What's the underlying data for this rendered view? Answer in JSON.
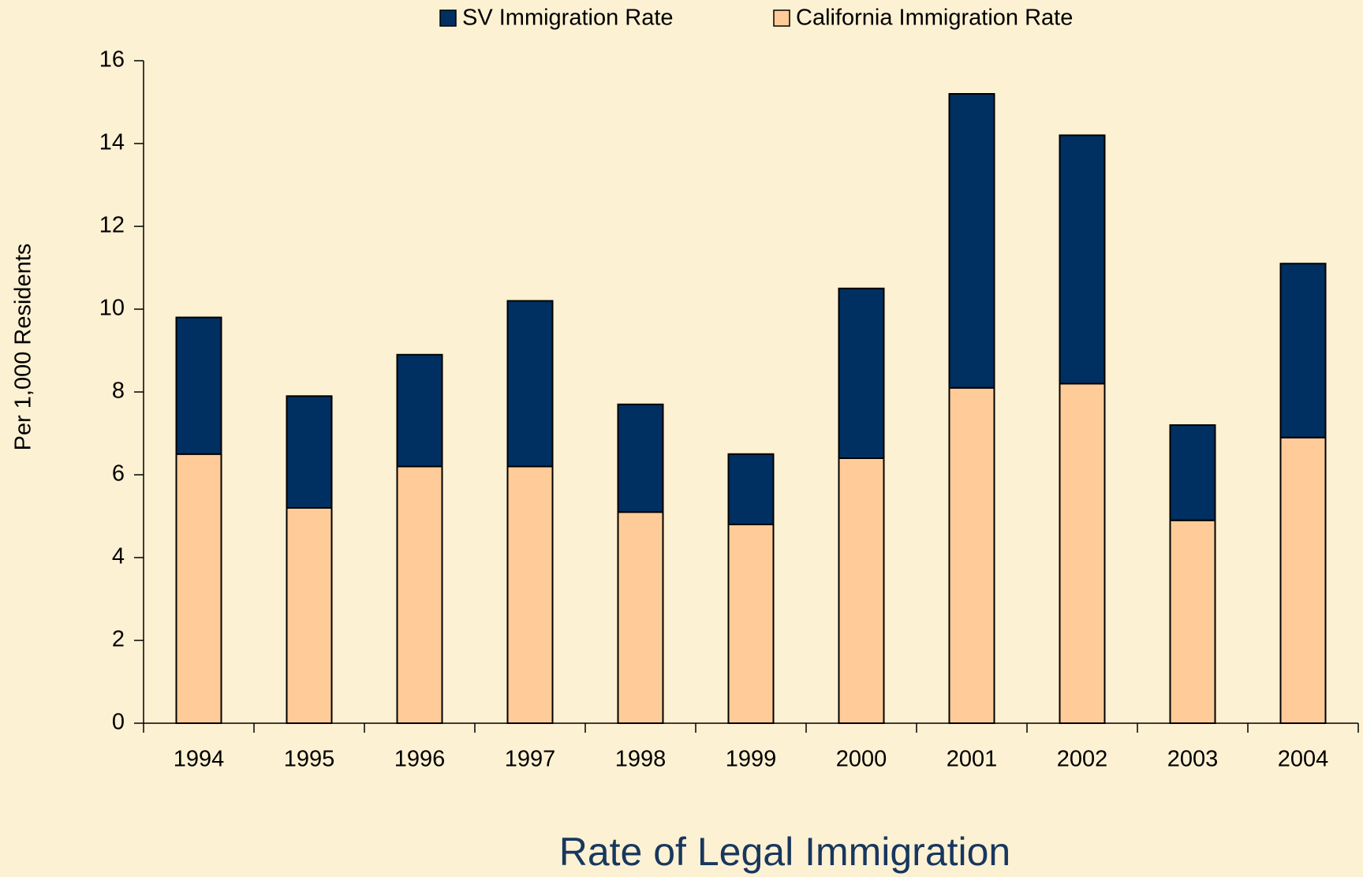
{
  "chart_data": {
    "type": "stacked_bar",
    "title": "Rate of Legal Immigration",
    "y_label": "Per 1,000 Residents",
    "categories": [
      "1994",
      "1995",
      "1996",
      "1997",
      "1998",
      "1999",
      "2000",
      "2001",
      "2002",
      "2003",
      "2004"
    ],
    "series": [
      {
        "name": "SV Immigration Rate",
        "color": "#003062",
        "values": [
          3.3,
          2.7,
          2.7,
          4.0,
          2.6,
          1.7,
          4.1,
          7.1,
          6.0,
          2.3,
          4.2
        ]
      },
      {
        "name": "California Immigration Rate",
        "color": "#ffcc99",
        "values": [
          6.5,
          5.2,
          6.2,
          6.2,
          5.1,
          4.8,
          6.4,
          8.1,
          8.2,
          4.9,
          6.9
        ]
      }
    ],
    "ylim": [
      0,
      16
    ],
    "yticks": [
      0,
      2,
      4,
      6,
      8,
      10,
      12,
      14,
      16
    ],
    "grid": false,
    "legend": "top"
  }
}
